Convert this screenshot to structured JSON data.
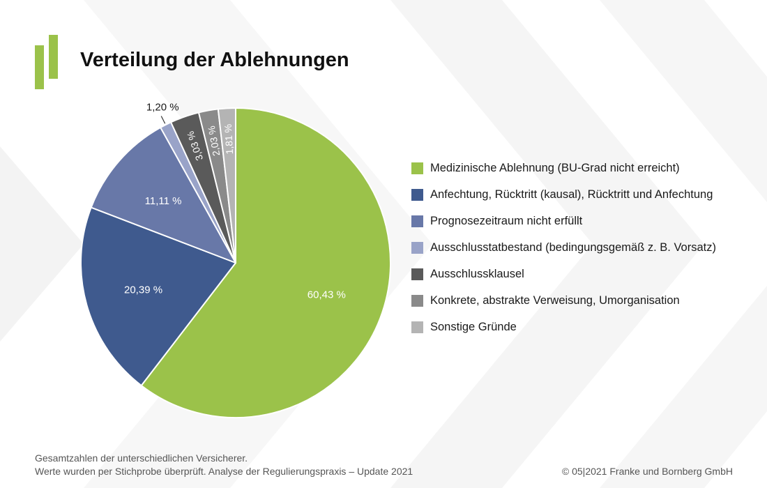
{
  "title": "Verteilung der Ablehnungen",
  "chart_data": {
    "type": "pie",
    "title": "Verteilung der Ablehnungen",
    "slices": [
      {
        "label": "Medizinische Ablehnung (BU-Grad nicht erreicht)",
        "value": 60.43,
        "value_label": "60,43 %",
        "color": "#9bc24a"
      },
      {
        "label": "Anfechtung, Rücktritt (kausal), Rücktritt und Anfechtung",
        "value": 20.39,
        "value_label": "20,39 %",
        "color": "#3f5a8e"
      },
      {
        "label": "Prognosezeitraum nicht erfüllt",
        "value": 11.11,
        "value_label": "11,11 %",
        "color": "#6878a8"
      },
      {
        "label": "Ausschlusstatbestand (bedingungsgemäß z. B. Vorsatz)",
        "value": 1.2,
        "value_label": "1,20 %",
        "color": "#99a3c8"
      },
      {
        "label": "Ausschlussklausel",
        "value": 3.03,
        "value_label": "3,03 %",
        "color": "#5a5a5a"
      },
      {
        "label": "Konkrete, abstrakte Verweisung, Umorganisation",
        "value": 2.03,
        "value_label": "2,03 %",
        "color": "#8a8a8a"
      },
      {
        "label": "Sonstige Gründe",
        "value": 1.81,
        "value_label": "1,81 %",
        "color": "#b4b4b4"
      }
    ],
    "legend_position": "right"
  },
  "footer": {
    "line1": "Gesamtzahlen der unterschiedlichen Versicherer.",
    "line2": "Werte wurden per Stichprobe überprüft. Analyse der Regulierungspraxis – Update 2021",
    "copyright": "© 05|2021 Franke und Bornberg GmbH"
  }
}
